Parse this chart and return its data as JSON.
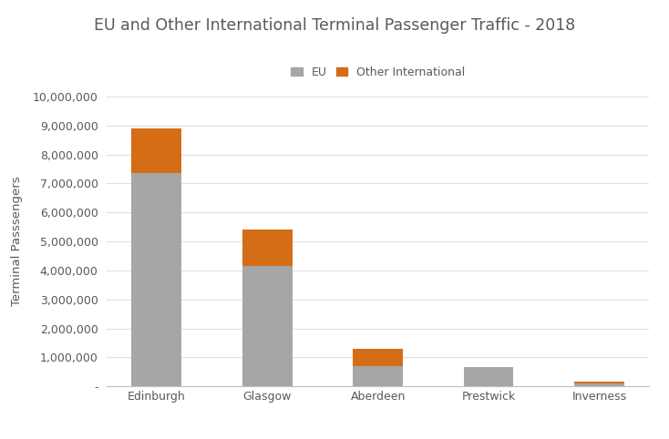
{
  "categories": [
    "Edinburgh",
    "Glasgow",
    "Aberdeen",
    "Prestwick",
    "Inverness"
  ],
  "eu_values": [
    7350000,
    4150000,
    700000,
    650000,
    100000
  ],
  "other_values": [
    1550000,
    1250000,
    580000,
    0,
    55000
  ],
  "eu_color": "#a6a6a6",
  "other_color": "#d46d15",
  "title": "EU and Other International Terminal Passenger Traffic - 2018",
  "ylabel": "Terminal Passsengers",
  "legend_eu": "EU",
  "legend_other": "Other International",
  "ylim_min": 0,
  "ylim_max": 10000000,
  "yticks": [
    0,
    1000000,
    2000000,
    3000000,
    4000000,
    5000000,
    6000000,
    7000000,
    8000000,
    9000000,
    10000000
  ],
  "ytick_labels": [
    "-",
    "1,000,000",
    "2,000,000",
    "3,000,000",
    "4,000,000",
    "5,000,000",
    "6,000,000",
    "7,000,000",
    "8,000,000",
    "9,000,000",
    "10,000,000"
  ],
  "background_color": "#ffffff",
  "title_fontsize": 12.5,
  "label_fontsize": 9.5,
  "tick_fontsize": 9,
  "bar_width": 0.45,
  "grid_color": "#e0e0e0",
  "text_color": "#595959"
}
